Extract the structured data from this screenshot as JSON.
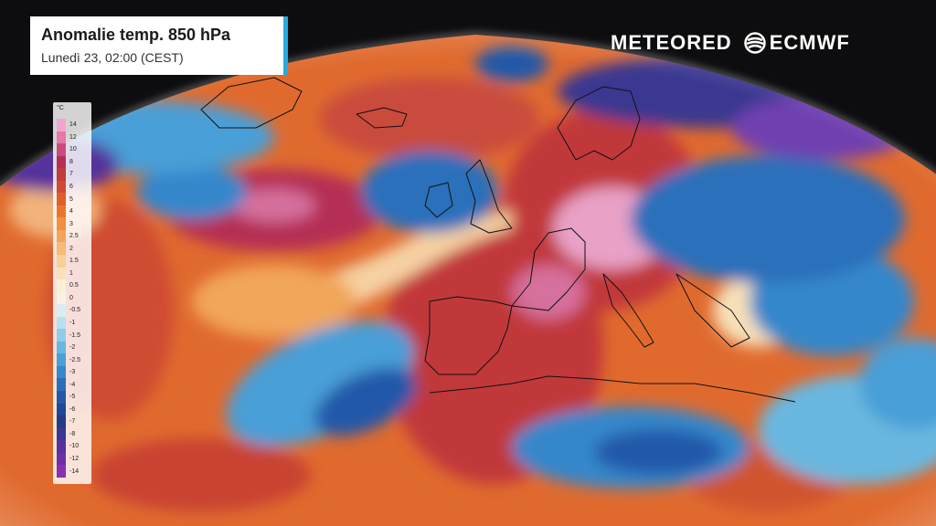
{
  "header": {
    "title": "Anomalie temp. 850 hPa",
    "subtitle": "Lunedì 23, 02:00 (CEST)"
  },
  "brand": {
    "meteored": "METEORED",
    "ecmwf": "ECMWF"
  },
  "legend": {
    "unit": "°C",
    "levels": [
      "14",
      "12",
      "10",
      "8",
      "7",
      "6",
      "5",
      "4",
      "3",
      "2.5",
      "2",
      "1.5",
      "1",
      "0.5",
      "0",
      "-0.5",
      "-1",
      "-1.5",
      "-2",
      "-2.5",
      "-3",
      "-4",
      "-5",
      "-6",
      "-7",
      "-8",
      "-10",
      "-12",
      "-14"
    ],
    "colors": [
      "#f2a6cf",
      "#e37aa8",
      "#c94c7c",
      "#b52f55",
      "#c23a3a",
      "#cf4b33",
      "#dc5f2c",
      "#e9762e",
      "#ef9140",
      "#f3a65a",
      "#f6bb76",
      "#f8cf96",
      "#fae2b8",
      "#fbefd6",
      "#f6f3e4",
      "#d8eef3",
      "#b6e0ee",
      "#8ecde8",
      "#69b7e0",
      "#4a9fd7",
      "#3687cb",
      "#2b6fbb",
      "#2459a9",
      "#1f4896",
      "#223c86",
      "#3a3791",
      "#55329c",
      "#6f2ea6",
      "#8a2fb0"
    ]
  },
  "map": {
    "colors": {
      "background": "#0d0d0f",
      "warm_base": "#e06a2e",
      "warm_strong": "#c1383a",
      "warm_peak": "#e9a1c6",
      "cool_base": "#4a9fd7",
      "cool_strong": "#2459a9",
      "cold_peak": "#6f3fb0",
      "coastline": "#111111"
    }
  }
}
